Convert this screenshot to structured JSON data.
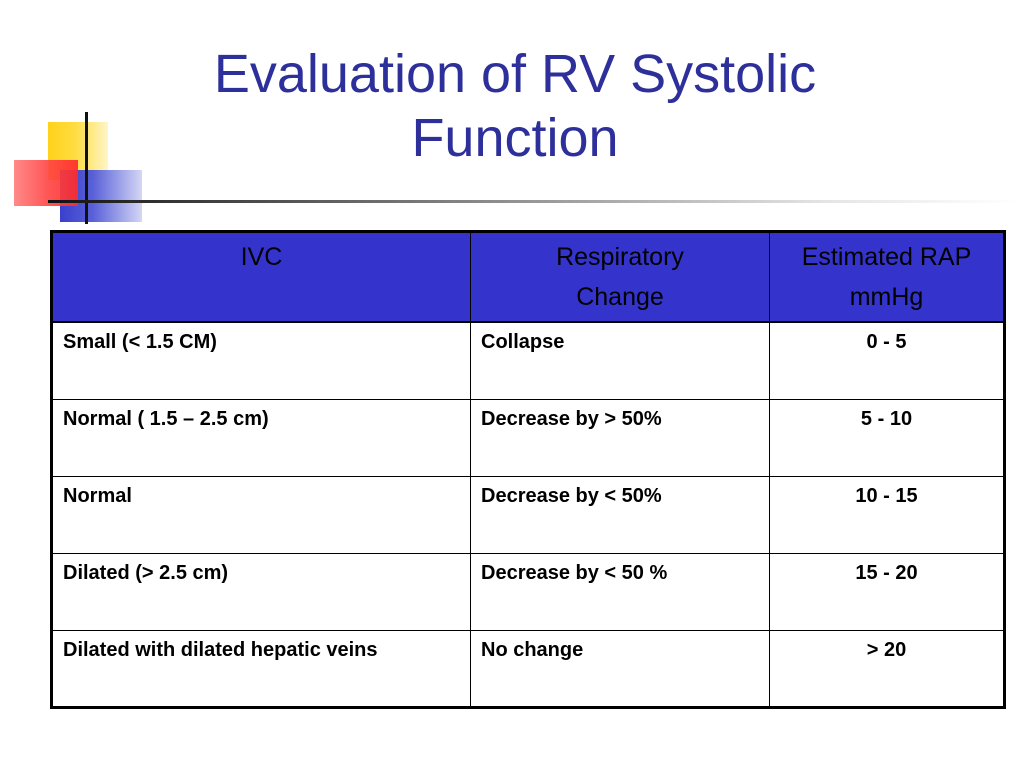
{
  "slide": {
    "title_line1": "Evaluation of RV Systolic",
    "title_line2": "Function",
    "title_color": "#2d2f9a",
    "header_bg_color": "#3434cc"
  },
  "table": {
    "headers": [
      {
        "line1": "IVC",
        "line2": ""
      },
      {
        "line1": "Respiratory",
        "line2": "Change"
      },
      {
        "line1": "Estimated RAP",
        "line2": "mmHg"
      }
    ],
    "rows": [
      {
        "ivc": "Small (< 1.5 CM)",
        "change": "Collapse",
        "rap": "0 - 5"
      },
      {
        "ivc": "Normal ( 1.5 – 2.5 cm)",
        "change": "Decrease by > 50%",
        "rap": "5 - 10"
      },
      {
        "ivc": "Normal",
        "change": "Decrease by < 50%",
        "rap": "10 - 15"
      },
      {
        "ivc": "Dilated (> 2.5 cm)",
        "change": "Decrease by < 50 %",
        "rap": "15 - 20"
      },
      {
        "ivc": "Dilated with dilated hepatic veins",
        "change": "No change",
        "rap": "> 20"
      }
    ]
  }
}
